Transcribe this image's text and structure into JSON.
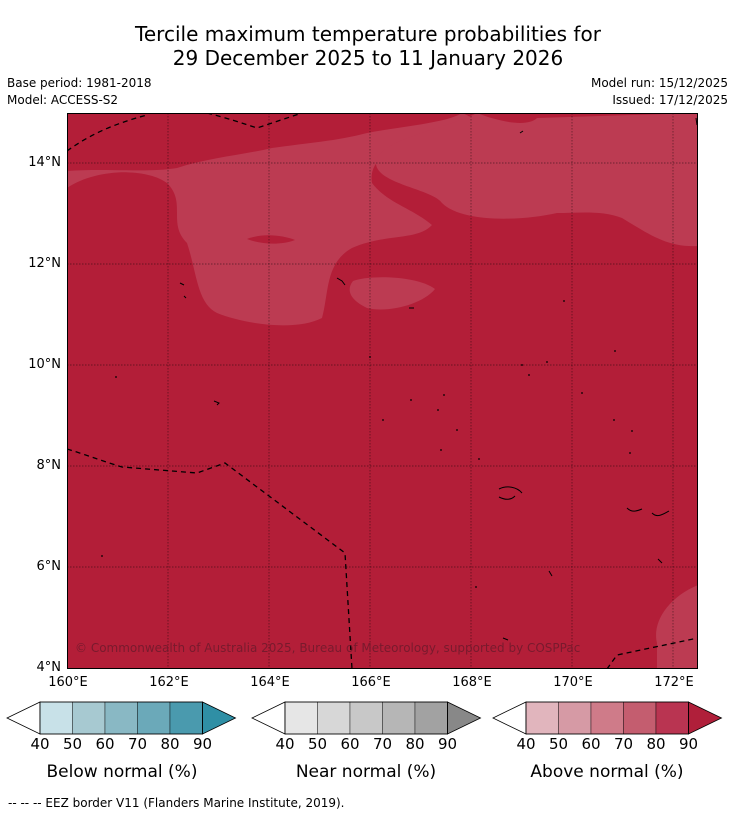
{
  "title_line1": "Tercile maximum temperature probabilities for",
  "title_line2": "29 December 2025 to 11 January 2026",
  "base_period": "Base period: 1981-2018",
  "model": "Model: ACCESS-S2",
  "model_run": "Model run: 15/12/2025",
  "issued": "Issued: 17/12/2025",
  "copyright": "© Commonwealth of Australia 2025, Bureau of Meteorology, supported by COSPPac",
  "footer": "--  --  -- EEZ border V11 (Flanders Marine Institute, 2019).",
  "map": {
    "lat_labels": [
      "14°N",
      "12°N",
      "10°N",
      "8°N",
      "6°N",
      "4°N"
    ],
    "lon_labels": [
      "160°E",
      "162°E",
      "164°E",
      "166°E",
      "168°E",
      "170°E",
      "172°E"
    ]
  },
  "colorbars": [
    {
      "label": "Below normal (%)",
      "ticks": [
        "40",
        "50",
        "60",
        "70",
        "80",
        "90"
      ],
      "colors": [
        "#c8e1e8",
        "#a7c9d1",
        "#89b8c4",
        "#6ba9b9",
        "#4a9aae",
        "#2f8fa5"
      ]
    },
    {
      "label": "Near normal (%)",
      "ticks": [
        "40",
        "50",
        "60",
        "70",
        "80",
        "90"
      ],
      "colors": [
        "#e6e6e6",
        "#d7d7d7",
        "#c8c8c8",
        "#b6b6b6",
        "#a2a2a2",
        "#888888"
      ]
    },
    {
      "label": "Above normal (%)",
      "ticks": [
        "40",
        "50",
        "60",
        "70",
        "80",
        "90"
      ],
      "colors": [
        "#e1b5bd",
        "#d69aa5",
        "#cf7b89",
        "#c45d6f",
        "#b93451",
        "#b01f3a"
      ]
    }
  ],
  "colors": {
    "above_80": "#b31e38",
    "above_70": "#bc3b52",
    "eez": "#000000"
  }
}
